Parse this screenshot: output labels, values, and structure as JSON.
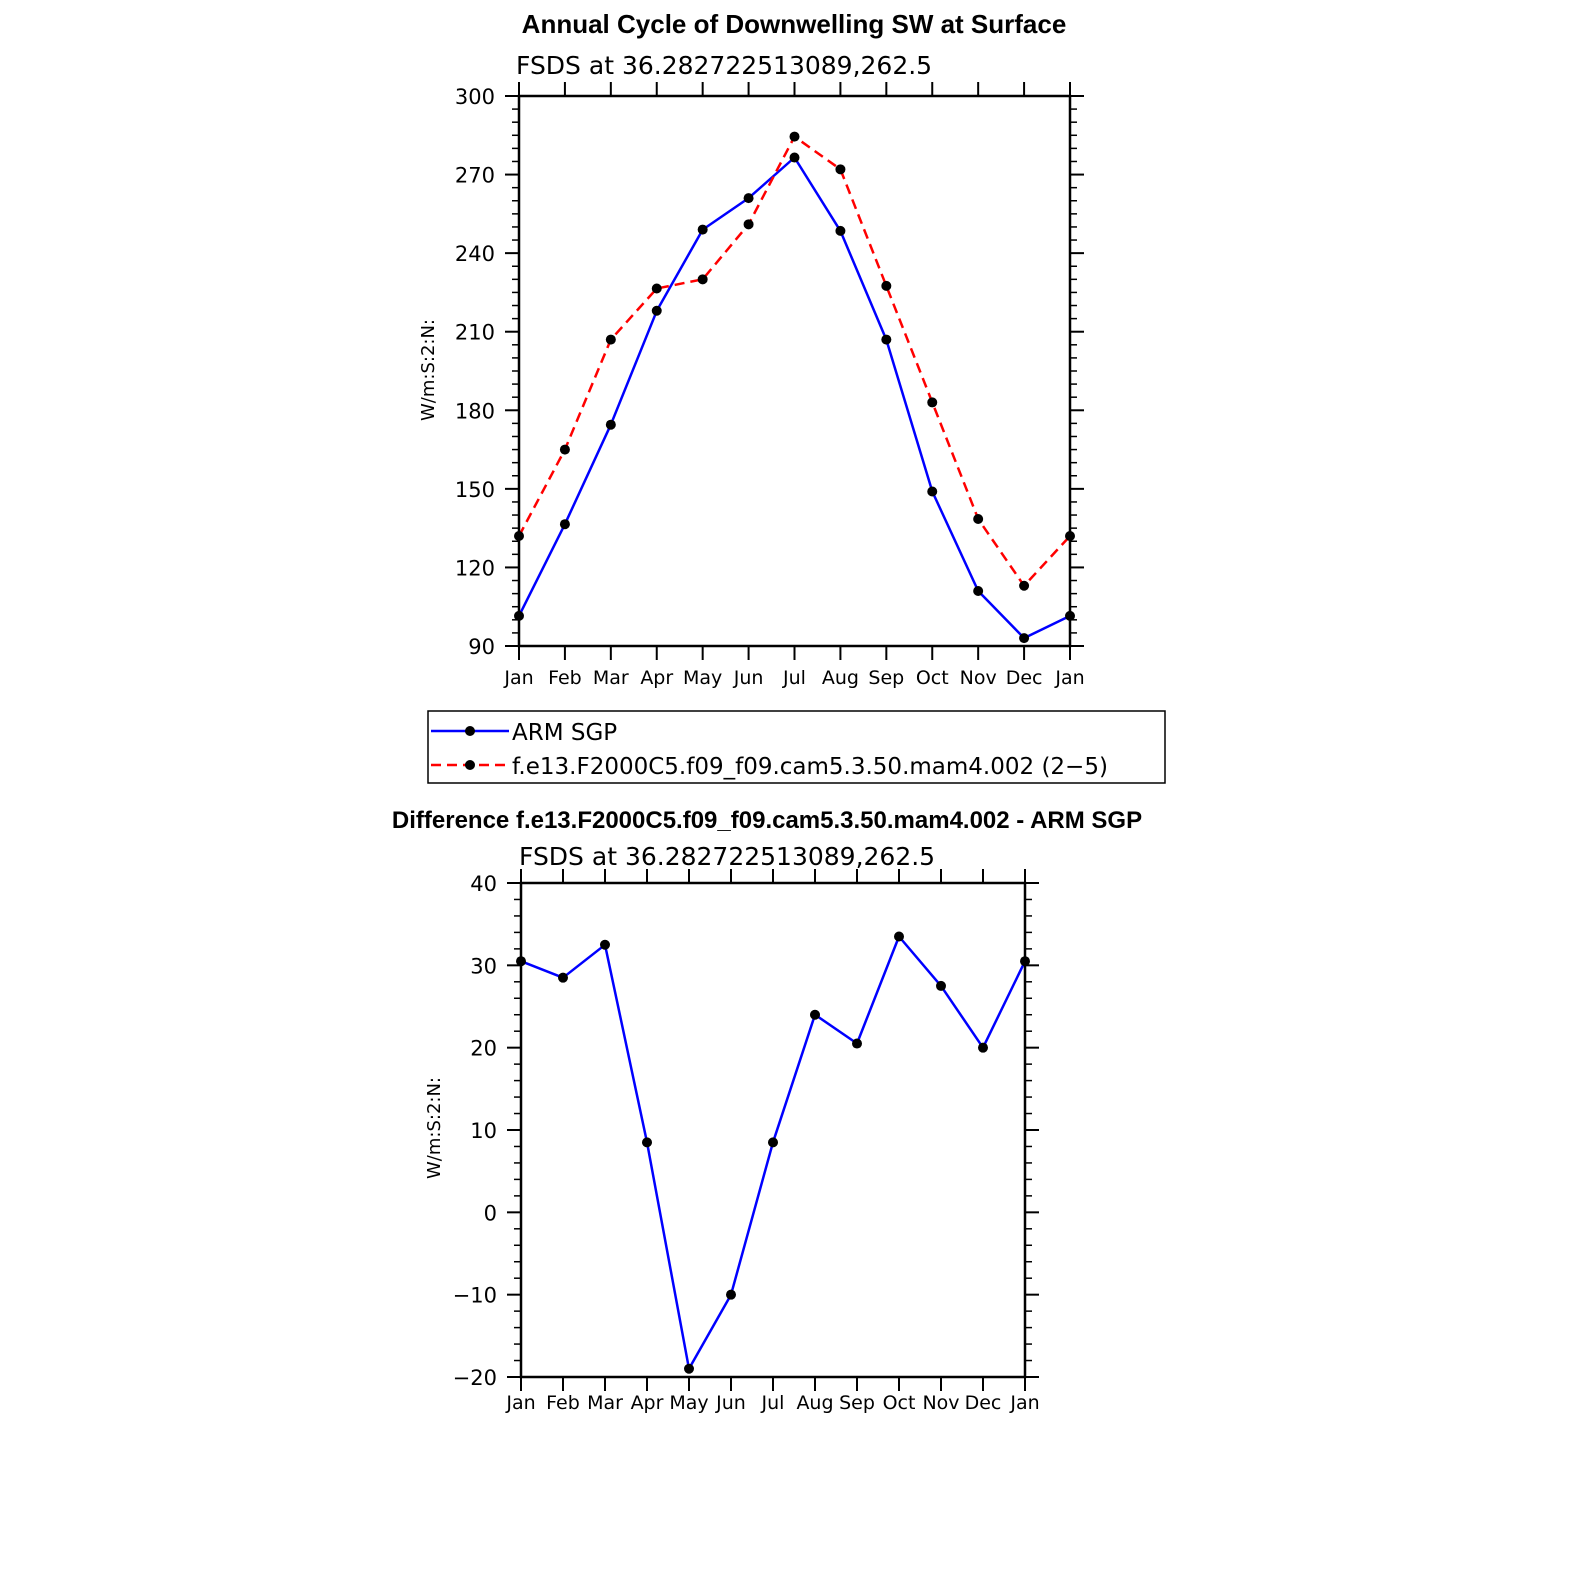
{
  "chart_data": [
    {
      "type": "line",
      "title": "Annual Cycle of Downwelling SW at Surface",
      "subtitle": "FSDS at 36.282722513089,262.5",
      "ylabel": "W/m:S:2:N:",
      "categories": [
        "Jan",
        "Feb",
        "Mar",
        "Apr",
        "May",
        "Jun",
        "Jul",
        "Aug",
        "Sep",
        "Oct",
        "Nov",
        "Dec",
        "Jan"
      ],
      "ylim": [
        90,
        300
      ],
      "yticks": [
        90,
        120,
        150,
        180,
        210,
        240,
        270,
        300
      ],
      "ytick_labels": [
        "90",
        "120",
        "150",
        "180",
        "210",
        "240",
        "270",
        "300"
      ],
      "series": [
        {
          "name": "ARM SGP",
          "color": "#0000ff",
          "dash": "solid",
          "values": [
            101.5,
            136.5,
            174.5,
            218,
            249,
            261,
            276.5,
            248.5,
            207,
            149,
            111,
            93,
            101.5
          ]
        },
        {
          "name": "f.e13.F2000C5.f09_f09.cam5.3.50.mam4.002 (2−5)",
          "color": "#ff0000",
          "dash": "dashed",
          "values": [
            132,
            165,
            207,
            226.5,
            230,
            251,
            284.5,
            272,
            227.5,
            183,
            138.5,
            113,
            132
          ]
        }
      ],
      "legend": "below"
    },
    {
      "type": "line",
      "title": "Difference f.e13.F2000C5.f09_f09.cam5.3.50.mam4.002 - ARM SGP",
      "subtitle": "FSDS at 36.282722513089,262.5",
      "ylabel": "W/m:S:2:N:",
      "categories": [
        "Jan",
        "Feb",
        "Mar",
        "Apr",
        "May",
        "Jun",
        "Jul",
        "Aug",
        "Sep",
        "Oct",
        "Nov",
        "Dec",
        "Jan"
      ],
      "ylim": [
        -20,
        40
      ],
      "yticks": [
        -20,
        -10,
        0,
        10,
        20,
        30,
        40
      ],
      "ytick_labels": [
        "−20",
        "−10",
        "0",
        "10",
        "20",
        "30",
        "40"
      ],
      "series": [
        {
          "color": "#0000ff",
          "dash": "solid",
          "values": [
            30.5,
            28.5,
            32.5,
            8.5,
            -19,
            -10,
            8.5,
            24,
            20.5,
            33.5,
            27.5,
            20,
            30.5
          ]
        }
      ]
    }
  ]
}
